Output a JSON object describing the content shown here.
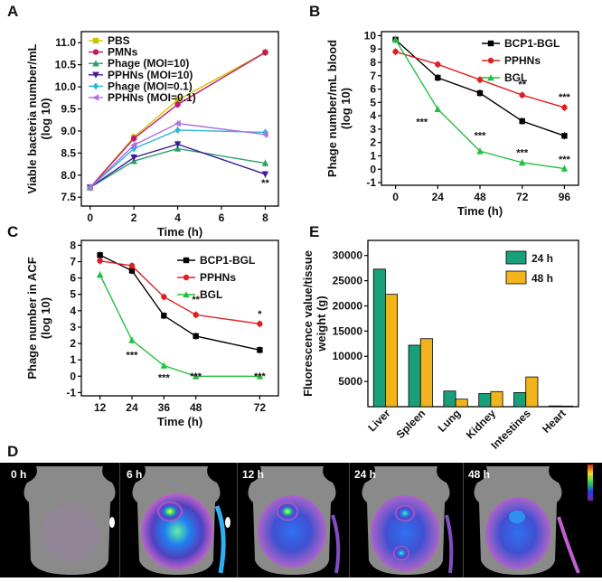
{
  "panels": {
    "A": "A",
    "B": "B",
    "C": "C",
    "D": "D",
    "E": "E"
  },
  "chart_data": [
    {
      "id": "A",
      "type": "line",
      "xlabel": "Time (h)",
      "ylabel": "Viable bacteria number/mL (log 10)",
      "ylabel_lines": [
        "Viable bacteria number/mL",
        "(log 10)"
      ],
      "x": [
        0,
        2,
        4,
        8
      ],
      "xticks": [
        "0",
        "2",
        "4",
        "6",
        "8"
      ],
      "xlim": [
        -0.4,
        8.6
      ],
      "ylim": [
        7.3,
        11.25
      ],
      "yticks": [
        "7.5",
        "8.0",
        "8.5",
        "9.0",
        "9.5",
        "10.0",
        "10.5",
        "11.0"
      ],
      "series": [
        {
          "name": "PBS",
          "values": [
            7.72,
            8.86,
            9.7,
            10.78
          ],
          "color": "#c8c800",
          "marker": "square"
        },
        {
          "name": "PMNs",
          "values": [
            7.72,
            8.83,
            9.6,
            10.78
          ],
          "color": "#c0186f",
          "marker": "circle"
        },
        {
          "name": "Phage (MOI=10)",
          "values": [
            7.72,
            8.32,
            8.6,
            8.27
          ],
          "color": "#2aa06a",
          "marker": "triangle"
        },
        {
          "name": "PPHNs (MOI=10)",
          "values": [
            7.72,
            8.4,
            8.7,
            8.02
          ],
          "color": "#3c1a9a",
          "marker": "tri-down"
        },
        {
          "name": "Phage (MOI=0.1)",
          "values": [
            7.72,
            8.6,
            9.02,
            8.97
          ],
          "color": "#28b8d8",
          "marker": "diamond"
        },
        {
          "name": "PPHNs (MOI=0.1)",
          "values": [
            7.72,
            8.68,
            9.17,
            8.92
          ],
          "color": "#b070e0",
          "marker": "tri-left"
        }
      ],
      "annotations": [
        {
          "x": 8,
          "y": 7.75,
          "text": "**"
        }
      ]
    },
    {
      "id": "B",
      "type": "line",
      "xlabel": "Time (h)",
      "ylabel": "Phage number/mL blood (log 10)",
      "ylabel_lines": [
        "Phage number/mL blood",
        "(log 10)"
      ],
      "x": [
        0,
        24,
        48,
        72,
        96
      ],
      "xticks": [
        "0",
        "24",
        "48",
        "72",
        "96"
      ],
      "xlim": [
        -8,
        104
      ],
      "ylim": [
        -1.2,
        10.3
      ],
      "yticks": [
        "-1",
        "0",
        "1",
        "2",
        "3",
        "4",
        "5",
        "6",
        "7",
        "8",
        "9",
        "10"
      ],
      "series": [
        {
          "name": "BCP1-BGL",
          "values": [
            9.7,
            6.85,
            5.7,
            3.6,
            2.5
          ],
          "color": "#000000",
          "marker": "square"
        },
        {
          "name": "PPHNs",
          "values": [
            8.8,
            7.85,
            6.7,
            5.55,
            4.62
          ],
          "color": "#e02020",
          "marker": "circle"
        },
        {
          "name": "BGL",
          "values": [
            9.7,
            4.5,
            1.35,
            0.5,
            0.05
          ],
          "color": "#22c040",
          "marker": "triangle"
        }
      ],
      "annotations": [
        {
          "x": 72,
          "y": 6.1,
          "text": "**"
        },
        {
          "x": 96,
          "y": 5.15,
          "text": "***"
        },
        {
          "x": 15,
          "y": 3.3,
          "text": "***"
        },
        {
          "x": 48,
          "y": 2.3,
          "text": "***"
        },
        {
          "x": 72,
          "y": 1.0,
          "text": "***"
        },
        {
          "x": 96,
          "y": 0.5,
          "text": "***"
        }
      ]
    },
    {
      "id": "C",
      "type": "line",
      "xlabel": "Time (h)",
      "ylabel": "Phage number in ACF (log 10)",
      "ylabel_lines": [
        "Phage number in ACF",
        "(log 10)"
      ],
      "x": [
        12,
        24,
        36,
        48,
        72
      ],
      "xticks": [
        "12",
        "24",
        "36",
        "48",
        "72"
      ],
      "xlim": [
        5,
        79
      ],
      "ylim": [
        -1.2,
        8.3
      ],
      "yticks": [
        "-1",
        "0",
        "1",
        "2",
        "3",
        "4",
        "5",
        "6",
        "7",
        "8"
      ],
      "series": [
        {
          "name": "BCP1-BGL",
          "values": [
            7.4,
            6.45,
            3.7,
            2.45,
            1.6
          ],
          "color": "#000000",
          "marker": "square"
        },
        {
          "name": "PPHNs",
          "values": [
            7.05,
            6.75,
            4.85,
            3.75,
            3.2
          ],
          "color": "#e02020",
          "marker": "circle"
        },
        {
          "name": "BGL",
          "values": [
            6.2,
            2.2,
            0.65,
            0.0,
            0.0
          ],
          "color": "#22c040",
          "marker": "triangle"
        }
      ],
      "annotations": [
        {
          "x": 48,
          "y": 4.5,
          "text": "**"
        },
        {
          "x": 72,
          "y": 3.6,
          "text": "*"
        },
        {
          "x": 24,
          "y": 1.1,
          "text": "***"
        },
        {
          "x": 36,
          "y": -0.3,
          "text": "***"
        },
        {
          "x": 48,
          "y": -0.2,
          "text": "***"
        },
        {
          "x": 72,
          "y": -0.2,
          "text": "***"
        }
      ]
    },
    {
      "id": "E",
      "type": "bar",
      "ylabel": "Fluorescence value/tissue weight (g)",
      "ylabel_lines": [
        "Fluorescence value/tissue",
        "weight (g)"
      ],
      "categories": [
        "Liver",
        "Spleen",
        "Lung",
        "Kidney",
        "Intestines",
        "Heart"
      ],
      "ylim": [
        0,
        33000
      ],
      "yticks": [
        "5000",
        "10000",
        "15000",
        "20000",
        "25000",
        "30000"
      ],
      "series": [
        {
          "name": "24 h",
          "values": [
            27300,
            12200,
            3100,
            2600,
            2800,
            150
          ],
          "color": "#19a07a"
        },
        {
          "name": "48 h",
          "values": [
            22300,
            13500,
            1500,
            3000,
            5900,
            120
          ],
          "color": "#f2b31c"
        }
      ]
    }
  ],
  "imaging": {
    "labels": [
      "0 h",
      "6 h",
      "12 h",
      "24 h",
      "48 h"
    ]
  }
}
